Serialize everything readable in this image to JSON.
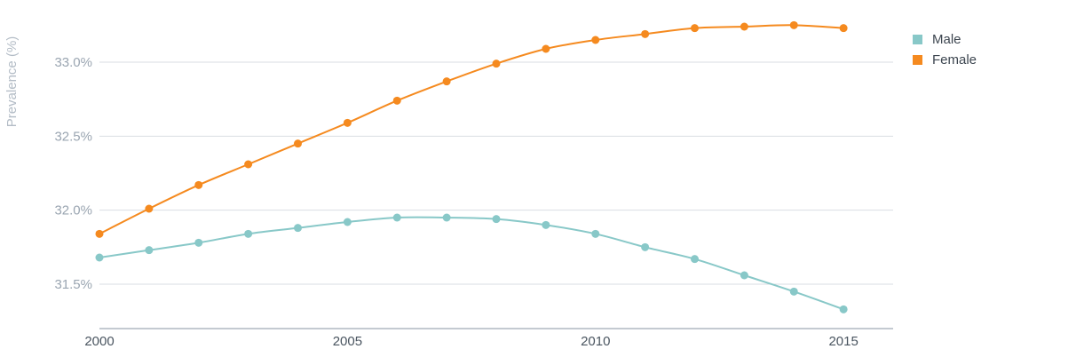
{
  "chart_data": {
    "type": "line",
    "title": "",
    "xlabel": "",
    "ylabel": "Prevalence (%)",
    "x": [
      2000,
      2001,
      2002,
      2003,
      2004,
      2005,
      2006,
      2007,
      2008,
      2009,
      2010,
      2011,
      2012,
      2013,
      2014,
      2015
    ],
    "x_ticks": [
      "2000",
      "2005",
      "2010",
      "2015"
    ],
    "y_ticks": [
      "31.5%",
      "32.0%",
      "32.5%",
      "33.0%"
    ],
    "y_tick_values": [
      31.5,
      32.0,
      32.5,
      33.0
    ],
    "ylim": [
      31.2,
      33.3
    ],
    "xlim": [
      2000,
      2016
    ],
    "grid": true,
    "legend_position": "top-right",
    "series": [
      {
        "name": "Male",
        "color": "#88c8c8",
        "values": [
          31.68,
          31.73,
          31.78,
          31.84,
          31.88,
          31.92,
          31.95,
          31.95,
          31.94,
          31.9,
          31.84,
          31.75,
          31.67,
          31.56,
          31.45,
          31.33
        ]
      },
      {
        "name": "Female",
        "color": "#f58a1f",
        "values": [
          31.84,
          32.01,
          32.17,
          32.31,
          32.45,
          32.59,
          32.74,
          32.87,
          32.99,
          33.09,
          33.15,
          33.19,
          33.23,
          33.24,
          33.25,
          33.23
        ]
      }
    ]
  }
}
